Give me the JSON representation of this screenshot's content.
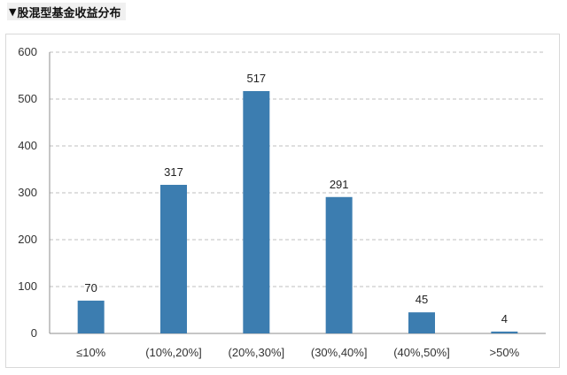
{
  "title": {
    "marker": "▼",
    "text": "股混型基金收益分布"
  },
  "chart_data": {
    "type": "bar",
    "categories": [
      "≤10%",
      "(10%,20%]",
      "(20%,30%]",
      "(30%,40%]",
      "(40%,50%]",
      ">50%"
    ],
    "values": [
      70,
      317,
      517,
      291,
      45,
      4
    ],
    "ylim": [
      0,
      600
    ],
    "yticks": [
      0,
      100,
      200,
      300,
      400,
      500,
      600
    ],
    "grid": true,
    "legend": "none",
    "bar_color": "#3c7db0",
    "grid_color": "#bfbfbf"
  }
}
